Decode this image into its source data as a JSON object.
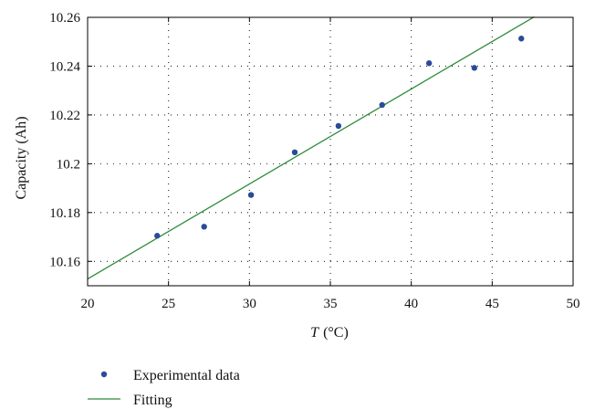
{
  "chart_data": {
    "type": "scatter",
    "title": "",
    "xlabel": {
      "italic": "T",
      "unit": "(°C)"
    },
    "ylabel": "Capacity (Ah)",
    "xlim": [
      20,
      50
    ],
    "ylim": [
      10.15,
      10.26
    ],
    "xticks": [
      20,
      25,
      30,
      35,
      40,
      45,
      50
    ],
    "xtick_labels": [
      "20",
      "25",
      "30",
      "35",
      "40",
      "45",
      "50"
    ],
    "yticks": [
      10.16,
      10.18,
      10.2,
      10.22,
      10.24,
      10.26
    ],
    "ytick_labels": [
      "10.16",
      "10.18",
      "10.2",
      "10.22",
      "10.24",
      "10.26"
    ],
    "grid": true,
    "legend_position": "bottom-left, below plot",
    "series": [
      {
        "name": "Experimental data",
        "kind": "scatter",
        "color": "#2b4a9a",
        "x": [
          24.3,
          27.2,
          30.1,
          32.8,
          35.5,
          38.2,
          41.1,
          43.9,
          46.8
        ],
        "y": [
          10.1705,
          10.1742,
          10.1872,
          10.2047,
          10.2155,
          10.2241,
          10.2412,
          10.2393,
          10.2513
        ]
      },
      {
        "name": "Fitting",
        "kind": "line",
        "color": "#2e8b3a",
        "x": [
          20,
          47.6
        ],
        "y": [
          10.1528,
          10.2602
        ]
      }
    ]
  }
}
